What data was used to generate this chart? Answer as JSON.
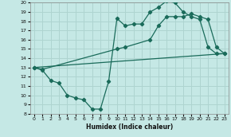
{
  "xlabel": "Humidex (Indice chaleur)",
  "bg_color": "#c5e8e5",
  "line_color": "#1a6b5a",
  "grid_color": "#aed4d0",
  "xlim": [
    -0.5,
    23.5
  ],
  "ylim": [
    8,
    20
  ],
  "xticks": [
    0,
    1,
    2,
    3,
    4,
    5,
    6,
    7,
    8,
    9,
    10,
    11,
    12,
    13,
    14,
    15,
    16,
    17,
    18,
    19,
    20,
    21,
    22,
    23
  ],
  "yticks": [
    8,
    9,
    10,
    11,
    12,
    13,
    14,
    15,
    16,
    17,
    18,
    19,
    20
  ],
  "line1_x": [
    0,
    1,
    2,
    3,
    4,
    5,
    6,
    7,
    8,
    9,
    10,
    11,
    12,
    13,
    14,
    15,
    16,
    17,
    18,
    19,
    20,
    21,
    22,
    23
  ],
  "line1_y": [
    13.0,
    12.7,
    11.6,
    11.3,
    10.0,
    9.7,
    9.5,
    8.5,
    8.5,
    11.5,
    18.3,
    17.5,
    17.7,
    17.7,
    19.0,
    19.5,
    20.2,
    20.0,
    19.0,
    18.5,
    18.2,
    15.2,
    14.5,
    14.5
  ],
  "line2_x": [
    0,
    1,
    10,
    11,
    14,
    15,
    16,
    17,
    18,
    19,
    20,
    21,
    22,
    23
  ],
  "line2_y": [
    13.0,
    12.8,
    15.0,
    15.2,
    16.0,
    17.5,
    18.5,
    18.5,
    18.5,
    18.8,
    18.5,
    18.2,
    15.2,
    14.5
  ],
  "line3_x": [
    0,
    23
  ],
  "line3_y": [
    13.0,
    14.5
  ]
}
